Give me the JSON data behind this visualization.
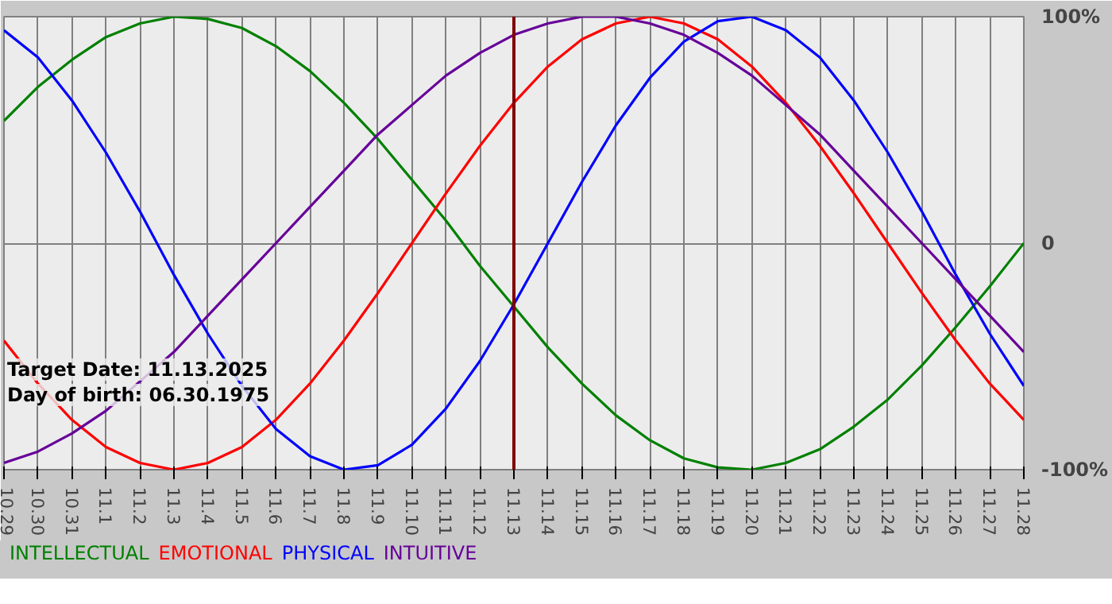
{
  "chart_data": {
    "type": "line",
    "categories": [
      "10.29",
      "10.30",
      "10.31",
      "11.1",
      "11.2",
      "11.3",
      "11.4",
      "11.5",
      "11.6",
      "11.7",
      "11.8",
      "11.9",
      "11.10",
      "11.11",
      "11.12",
      "11.13",
      "11.14",
      "11.15",
      "11.16",
      "11.17",
      "11.18",
      "11.19",
      "11.20",
      "11.21",
      "11.22",
      "11.23",
      "11.24",
      "11.25",
      "11.26",
      "11.27",
      "11.28"
    ],
    "series": [
      {
        "name": "INTELLECTUAL",
        "color": "#008000",
        "values": [
          54,
          69,
          81,
          91,
          97,
          100,
          99,
          95,
          87,
          76,
          62,
          46,
          28,
          10,
          -10,
          -28,
          -46,
          -62,
          -76,
          -87,
          -95,
          -99,
          -100,
          -97,
          -91,
          -81,
          -69,
          -54,
          -37,
          -19,
          0
        ]
      },
      {
        "name": "EMOTIONAL",
        "color": "#ff0000",
        "values": [
          -43,
          -62,
          -78,
          -90,
          -97,
          -100,
          -97,
          -90,
          -78,
          -62,
          -43,
          -22,
          0,
          22,
          43,
          62,
          78,
          90,
          97,
          100,
          97,
          90,
          78,
          62,
          43,
          22,
          0,
          -22,
          -43,
          -62,
          -78
        ]
      },
      {
        "name": "PHYSICAL",
        "color": "#0000ff",
        "values": [
          94,
          82,
          63,
          40,
          14,
          -14,
          -40,
          -63,
          -82,
          -94,
          -100,
          -98,
          -89,
          -73,
          -52,
          -27,
          0,
          27,
          52,
          73,
          89,
          98,
          100,
          94,
          82,
          63,
          40,
          14,
          -14,
          -40,
          -63
        ]
      },
      {
        "name": "INTUITIVE",
        "color": "#660099",
        "values": [
          -97,
          -92,
          -84,
          -74,
          -61,
          -48,
          -32,
          -16,
          0,
          16,
          32,
          48,
          61,
          74,
          84,
          92,
          97,
          100,
          100,
          97,
          92,
          84,
          74,
          61,
          48,
          32,
          16,
          0,
          -16,
          -32,
          -48
        ]
      }
    ],
    "ylim": [
      -100,
      100
    ],
    "yticks": [
      {
        "value": 100,
        "label": "100%"
      },
      0,
      {
        "value": -100,
        "label": "-100%"
      }
    ],
    "ref_lines": [
      {
        "axis": "x",
        "value": "11.13",
        "color": "#800000"
      }
    ],
    "annotations": [
      "Target Date: 11.13.2025",
      "Day of birth: 06.30.1975"
    ],
    "grid": true,
    "legend": "bottom"
  }
}
